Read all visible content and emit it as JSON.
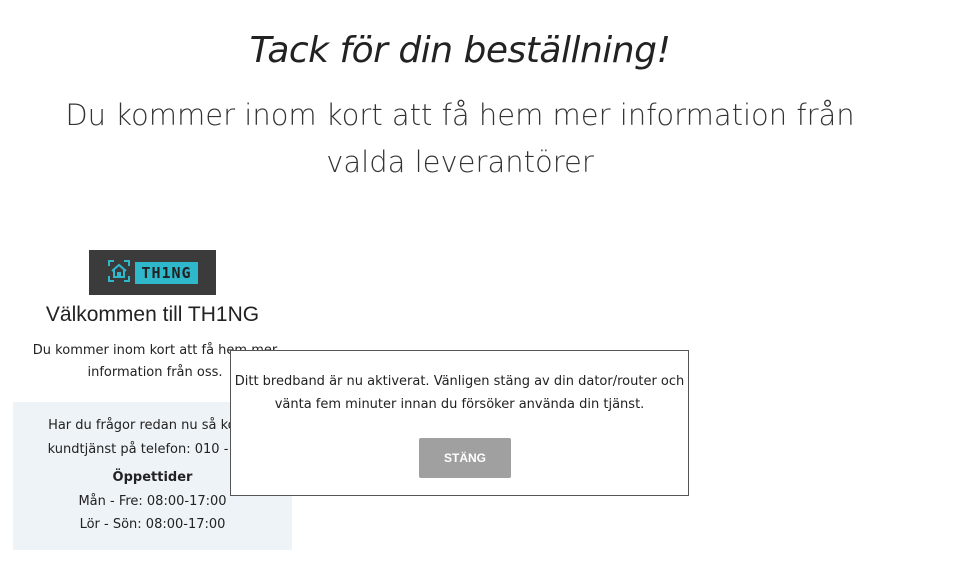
{
  "page": {
    "title": "Tack för din beställning!",
    "subtitle": "Du kommer inom kort att få hem mer information från valda leverantörer"
  },
  "provider": {
    "logo_text": "TH1NG",
    "logo_icon": "house-icon",
    "welcome": "Välkommen till TH1NG",
    "intro": "Du kommer inom kort att få hem mer information från oss.",
    "contact_line1": "Har du frågor redan nu så konta",
    "contact_line2": "kundtjänst på telefon: 010 - 252",
    "hours_heading": "Öppettider",
    "hours_weekday": "Mån - Fre: 08:00-17:00",
    "hours_weekend": "Lör - Sön: 08:00-17:00"
  },
  "modal": {
    "message": "Ditt bredband är nu aktiverat. Vänligen stäng av din dator/router och vänta fem minuter innan du försöker använda din tjänst.",
    "close_label": "STÄNG"
  },
  "colors": {
    "logo_accent": "#2fb8cc",
    "logo_bg": "#3b3b3b",
    "button_bg": "#a0a0a0",
    "contact_bg": "#eef3f7"
  }
}
